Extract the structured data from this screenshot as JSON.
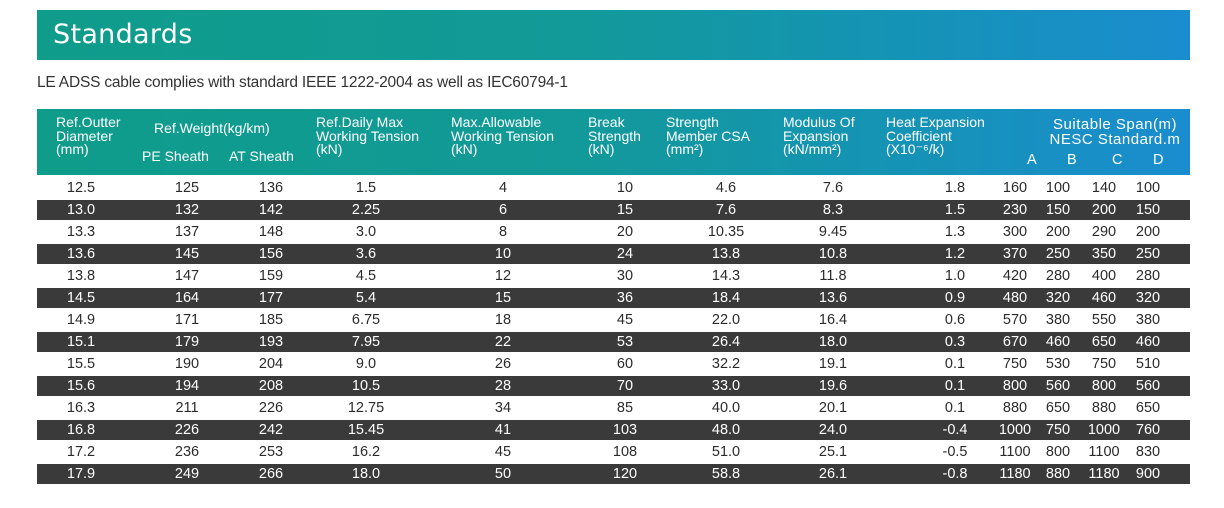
{
  "title": "Standards",
  "intro": "LE ADSS cable complies with standard IEEE 1222-2004 as well as IEC60794-1",
  "headers": {
    "diameter": [
      "Ref.Outter",
      "Diameter",
      "(mm)"
    ],
    "weight": "Ref.Weight(kg/km)",
    "pe": "PE Sheath",
    "at": "AT Sheath",
    "tension": [
      "Ref.Daily Max",
      "Working Tension",
      "(kN)"
    ],
    "allowable": [
      "Max.Allowable",
      "Working Tension",
      "(kN)"
    ],
    "break": [
      "Break",
      "Strength",
      "(kN)"
    ],
    "csa": [
      "Strength",
      "Member CSA",
      "(mm²)"
    ],
    "modulus": [
      "Modulus Of",
      "Expansion",
      "(kN/mm²)"
    ],
    "heat": [
      "Heat Expansion",
      "Coefficient",
      "(X10⁻⁶/k)"
    ],
    "span": [
      "Suitable Span(m)",
      "NESC Standard.m"
    ],
    "span_cols": [
      "A",
      "B",
      "C",
      "D"
    ]
  },
  "rows": [
    [
      "12.5",
      "125",
      "136",
      "1.5",
      "4",
      "10",
      "4.6",
      "7.6",
      "1.8",
      "160",
      "100",
      "140",
      "100"
    ],
    [
      "13.0",
      "132",
      "142",
      "2.25",
      "6",
      "15",
      "7.6",
      "8.3",
      "1.5",
      "230",
      "150",
      "200",
      "150"
    ],
    [
      "13.3",
      "137",
      "148",
      "3.0",
      "8",
      "20",
      "10.35",
      "9.45",
      "1.3",
      "300",
      "200",
      "290",
      "200"
    ],
    [
      "13.6",
      "145",
      "156",
      "3.6",
      "10",
      "24",
      "13.8",
      "10.8",
      "1.2",
      "370",
      "250",
      "350",
      "250"
    ],
    [
      "13.8",
      "147",
      "159",
      "4.5",
      "12",
      "30",
      "14.3",
      "11.8",
      "1.0",
      "420",
      "280",
      "400",
      "280"
    ],
    [
      "14.5",
      "164",
      "177",
      "5.4",
      "15",
      "36",
      "18.4",
      "13.6",
      "0.9",
      "480",
      "320",
      "460",
      "320"
    ],
    [
      "14.9",
      "171",
      "185",
      "6.75",
      "18",
      "45",
      "22.0",
      "16.4",
      "0.6",
      "570",
      "380",
      "550",
      "380"
    ],
    [
      "15.1",
      "179",
      "193",
      "7.95",
      "22",
      "53",
      "26.4",
      "18.0",
      "0.3",
      "670",
      "460",
      "650",
      "460"
    ],
    [
      "15.5",
      "190",
      "204",
      "9.0",
      "26",
      "60",
      "32.2",
      "19.1",
      "0.1",
      "750",
      "530",
      "750",
      "510"
    ],
    [
      "15.6",
      "194",
      "208",
      "10.5",
      "28",
      "70",
      "33.0",
      "19.6",
      "0.1",
      "800",
      "560",
      "800",
      "560"
    ],
    [
      "16.3",
      "211",
      "226",
      "12.75",
      "34",
      "85",
      "40.0",
      "20.1",
      "0.1",
      "880",
      "650",
      "880",
      "650"
    ],
    [
      "16.8",
      "226",
      "242",
      "15.45",
      "41",
      "103",
      "48.0",
      "24.0",
      "-0.4",
      "1000",
      "750",
      "1000",
      "760"
    ],
    [
      "17.2",
      "236",
      "253",
      "16.2",
      "45",
      "108",
      "51.0",
      "25.1",
      "-0.5",
      "1100",
      "800",
      "1100",
      "830"
    ],
    [
      "17.9",
      "249",
      "266",
      "18.0",
      "50",
      "120",
      "58.8",
      "26.1",
      "-0.8",
      "1180",
      "880",
      "1180",
      "900"
    ]
  ]
}
